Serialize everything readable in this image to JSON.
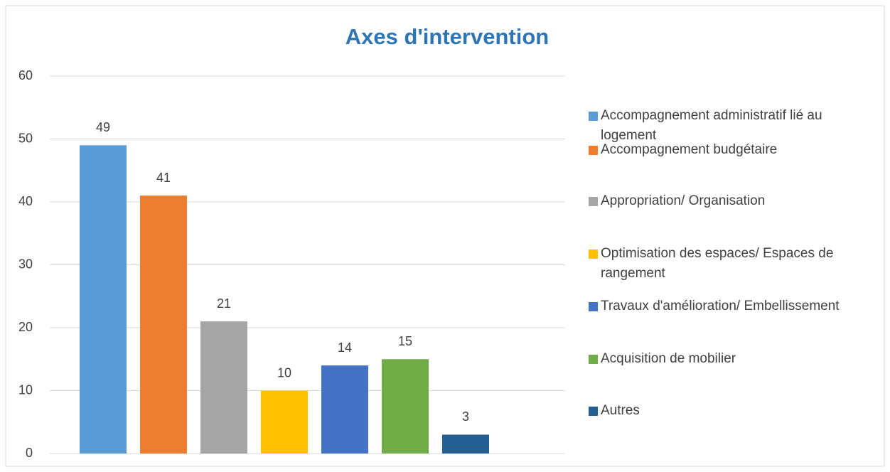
{
  "chart_data": {
    "type": "bar",
    "title": "Axes d'intervention",
    "categories": [
      "Accompagnement administratif lié au logement",
      "Accompagnement budgétaire",
      "Appropriation/ Organisation",
      "Optimisation des espaces/ Espaces de rangement",
      "Travaux d'amélioration/ Embellissement",
      "Acquisition de mobilier",
      "Autres"
    ],
    "values": [
      49,
      41,
      21,
      10,
      14,
      15,
      3
    ],
    "colors": [
      "#5b9bd5",
      "#ed7d31",
      "#a5a5a5",
      "#ffc000",
      "#4472c4",
      "#70ad47",
      "#255e91"
    ],
    "ylim": [
      0,
      60
    ],
    "yticks": [
      0,
      10,
      20,
      30,
      40,
      50,
      60
    ],
    "grid": true,
    "legend": "right"
  }
}
